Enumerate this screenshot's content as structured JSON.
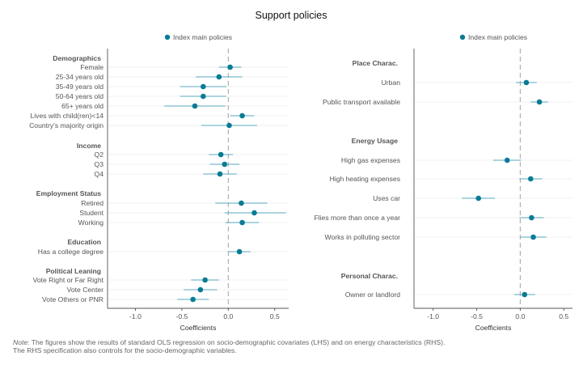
{
  "title": "Support policies",
  "colors": {
    "point": "#0a7b95",
    "ci": "#5aa7bd",
    "zero_line": "#aaaaaa",
    "grid": "#ebebeb",
    "axis": "#555555",
    "text": "#555555",
    "header": "#555555"
  },
  "note": {
    "prefix": "Note",
    "line1": ": The figures show the results of standard OLS regression on socio-demographic covariates (LHS) and on energy characteristics (RHS).",
    "line2": "The RHS specification also controls for the socio-demographic variables."
  },
  "chart_data": [
    {
      "type": "scatter",
      "title": "Support policies",
      "xlabel": "Coefficients",
      "xlim": [
        -1.3,
        0.65
      ],
      "xticks": [
        -1.0,
        -0.5,
        0.0,
        0.5
      ],
      "xtick_labels": [
        "-1.0",
        "-0.5",
        "0.0",
        "0.5"
      ],
      "legend": "top-center",
      "series": [
        {
          "name": "Index main policies"
        }
      ],
      "groups": [
        {
          "name": "Demographics",
          "items": [
            {
              "label": "Female",
              "value": 0.02,
              "ci": [
                -0.1,
                0.14
              ]
            },
            {
              "label": "25-34 years old",
              "value": -0.1,
              "ci": [
                -0.35,
                0.15
              ]
            },
            {
              "label": "35-49 years old",
              "value": -0.27,
              "ci": [
                -0.52,
                -0.02
              ]
            },
            {
              "label": "50-64 years old",
              "value": -0.27,
              "ci": [
                -0.52,
                -0.02
              ]
            },
            {
              "label": "65+ years old",
              "value": -0.36,
              "ci": [
                -0.69,
                -0.03
              ]
            },
            {
              "label": "Lives with child(ren)<14",
              "value": 0.15,
              "ci": [
                0.02,
                0.28
              ]
            },
            {
              "label": "Country's majority origin",
              "value": 0.01,
              "ci": [
                -0.29,
                0.31
              ]
            }
          ]
        },
        {
          "name": "Income",
          "items": [
            {
              "label": "Q2",
              "value": -0.08,
              "ci": [
                -0.21,
                0.05
              ]
            },
            {
              "label": "Q3",
              "value": -0.04,
              "ci": [
                -0.2,
                0.12
              ]
            },
            {
              "label": "Q4",
              "value": -0.09,
              "ci": [
                -0.27,
                0.09
              ]
            }
          ]
        },
        {
          "name": "Employment Status",
          "items": [
            {
              "label": "Retired",
              "value": 0.14,
              "ci": [
                -0.14,
                0.42
              ]
            },
            {
              "label": "Student",
              "value": 0.28,
              "ci": [
                -0.04,
                0.62
              ]
            },
            {
              "label": "Working",
              "value": 0.15,
              "ci": [
                -0.03,
                0.33
              ]
            }
          ]
        },
        {
          "name": "Education",
          "items": [
            {
              "label": "Has a college degree",
              "value": 0.12,
              "ci": [
                0.0,
                0.24
              ]
            }
          ]
        },
        {
          "name": "Political Leaning",
          "items": [
            {
              "label": "Vote Right or Far Right",
              "value": -0.25,
              "ci": [
                -0.4,
                -0.1
              ]
            },
            {
              "label": "Vote Center",
              "value": -0.3,
              "ci": [
                -0.48,
                -0.12
              ]
            },
            {
              "label": "Vote Others or PNR",
              "value": -0.38,
              "ci": [
                -0.55,
                -0.21
              ]
            }
          ]
        }
      ]
    },
    {
      "type": "scatter",
      "title": "",
      "xlabel": "Coefficients",
      "xlim": [
        -1.22,
        0.6
      ],
      "xticks": [
        -1.0,
        -0.5,
        0.0,
        0.5
      ],
      "xtick_labels": [
        "-1.0",
        "-0.5",
        "0.0",
        "0.5"
      ],
      "legend": "top-center",
      "series": [
        {
          "name": "Index main policies"
        }
      ],
      "groups": [
        {
          "name": "Place Charac.",
          "items": [
            {
              "label": "Urban",
              "value": 0.07,
              "ci": [
                -0.05,
                0.19
              ]
            },
            {
              "label": "Public transport available",
              "value": 0.22,
              "ci": [
                0.12,
                0.32
              ]
            }
          ]
        },
        {
          "name": "Energy Usage",
          "items": [
            {
              "label": "High gas expenses",
              "value": -0.15,
              "ci": [
                -0.31,
                0.01
              ]
            },
            {
              "label": "High heating expenses",
              "value": 0.12,
              "ci": [
                -0.01,
                0.25
              ]
            },
            {
              "label": "Uses car",
              "value": -0.48,
              "ci": [
                -0.67,
                -0.29
              ]
            },
            {
              "label": "Flies more than once a year",
              "value": 0.13,
              "ci": [
                -0.01,
                0.27
              ]
            },
            {
              "label": "Works in polluting sector",
              "value": 0.15,
              "ci": [
                0.0,
                0.3
              ]
            }
          ]
        },
        {
          "name": "Personal Charac.",
          "items": [
            {
              "label": "Owner or landlord",
              "value": 0.05,
              "ci": [
                -0.07,
                0.17
              ]
            }
          ]
        }
      ]
    }
  ]
}
